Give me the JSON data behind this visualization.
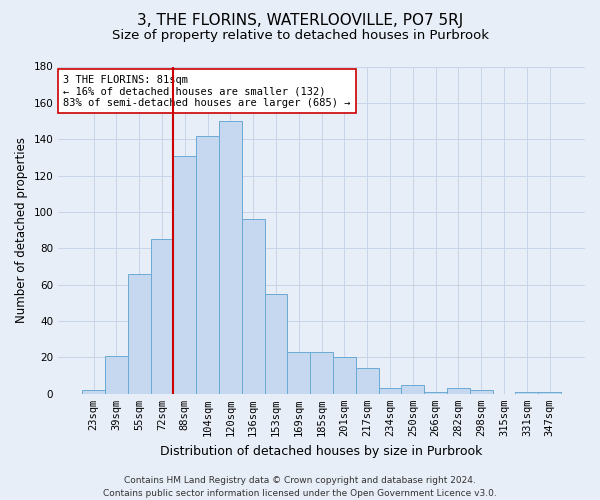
{
  "title": "3, THE FLORINS, WATERLOOVILLE, PO7 5RJ",
  "subtitle": "Size of property relative to detached houses in Purbrook",
  "xlabel": "Distribution of detached houses by size in Purbrook",
  "ylabel": "Number of detached properties",
  "categories": [
    "23sqm",
    "39sqm",
    "55sqm",
    "72sqm",
    "88sqm",
    "104sqm",
    "120sqm",
    "136sqm",
    "153sqm",
    "169sqm",
    "185sqm",
    "201sqm",
    "217sqm",
    "234sqm",
    "250sqm",
    "266sqm",
    "282sqm",
    "298sqm",
    "315sqm",
    "331sqm",
    "347sqm"
  ],
  "values": [
    2,
    21,
    66,
    85,
    131,
    142,
    150,
    96,
    55,
    23,
    23,
    20,
    14,
    3,
    5,
    1,
    3,
    2,
    0,
    1,
    1
  ],
  "bar_color": "#c5d8f0",
  "bar_edge_color": "#6aaad4",
  "grid_color": "#c8d4e8",
  "background_color": "#e8eef8",
  "vline_color": "#cc0000",
  "vline_x_index": 3.5,
  "annotation_text": "3 THE FLORINS: 81sqm\n← 16% of detached houses are smaller (132)\n83% of semi-detached houses are larger (685) →",
  "annotation_box_color": "#ffffff",
  "annotation_box_edge": "#cc0000",
  "ylim": [
    0,
    180
  ],
  "yticks": [
    0,
    20,
    40,
    60,
    80,
    100,
    120,
    140,
    160,
    180
  ],
  "footer1": "Contains HM Land Registry data © Crown copyright and database right 2024.",
  "footer2": "Contains public sector information licensed under the Open Government Licence v3.0.",
  "title_fontsize": 11,
  "subtitle_fontsize": 9.5,
  "tick_fontsize": 7.5,
  "ylabel_fontsize": 8.5,
  "xlabel_fontsize": 9,
  "annotation_fontsize": 7.5,
  "footer_fontsize": 6.5
}
